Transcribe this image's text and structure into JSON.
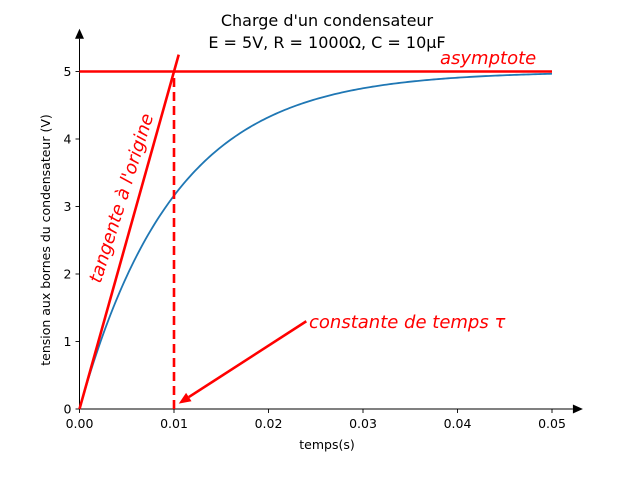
{
  "chart_data": {
    "type": "line",
    "title": "Charge d'un condensateur",
    "subtitle": "E = 5V, R = 1000Ω, C = 10µF",
    "xlabel": "temps(s)",
    "ylabel": "tension aux bornes du condensateur (V)",
    "xlim": [
      0,
      0.052
    ],
    "ylim": [
      0,
      5.5
    ],
    "xticks": [
      "0.00",
      "0.01",
      "0.02",
      "0.03",
      "0.04",
      "0.05"
    ],
    "yticks": [
      "0",
      "1",
      "2",
      "3",
      "4",
      "5"
    ],
    "grid": false,
    "series": [
      {
        "function": "5*(1-exp(-t/0.01))",
        "x": [
          0,
          0.0025,
          0.005,
          0.0075,
          0.01,
          0.0125,
          0.015,
          0.0175,
          0.02,
          0.025,
          0.03,
          0.035,
          0.04,
          0.045,
          0.05
        ],
        "values": [
          0,
          1.106,
          1.967,
          2.638,
          3.161,
          3.567,
          3.884,
          4.131,
          4.323,
          4.59,
          4.751,
          4.849,
          4.908,
          4.944,
          4.966
        ],
        "color": "#1f77b4"
      }
    ],
    "tangent": {
      "x": [
        0,
        0.0105
      ],
      "y": [
        0,
        5.25
      ],
      "color": "#ff0000"
    },
    "asymptote": {
      "y": 5,
      "x": [
        0,
        0.05
      ],
      "color": "#ff0000"
    },
    "tau_marker": {
      "x": 0.01,
      "y": [
        0,
        5
      ],
      "color": "#ff0000"
    },
    "arrow": {
      "from": [
        0.024,
        1.3
      ],
      "to": [
        0.0105,
        0.08
      ],
      "color": "#ff0000"
    },
    "annotations": {
      "asymptote": "asymptote",
      "tangent": "tangente à l'origine",
      "tau": "constante de temps τ"
    }
  }
}
